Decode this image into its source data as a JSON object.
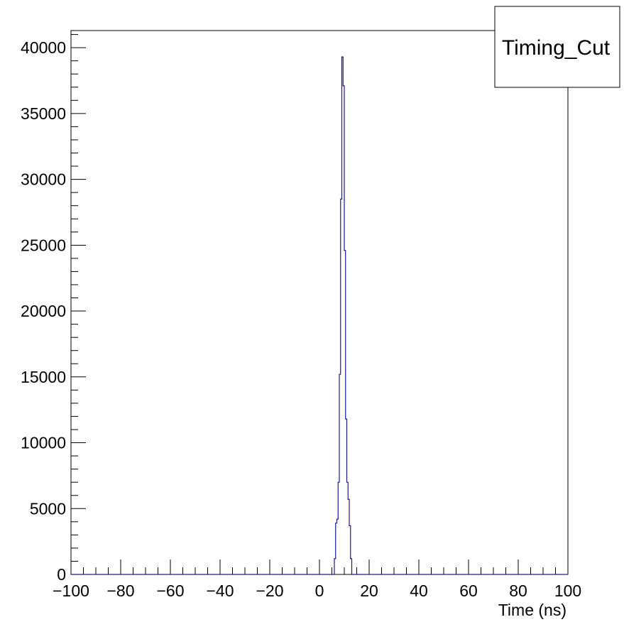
{
  "chart_data": {
    "type": "histogram",
    "title": "",
    "xlabel": "Time (ns)",
    "ylabel": "",
    "xlim": [
      -100,
      100
    ],
    "ylim": [
      0,
      41300
    ],
    "bin_width": 0.5,
    "x_ticks": [
      "−100",
      "−80",
      "−60",
      "−40",
      "−20",
      "0",
      "20",
      "40",
      "60",
      "80",
      "100"
    ],
    "y_ticks": [
      "0",
      "5000",
      "10000",
      "15000",
      "20000",
      "25000",
      "30000",
      "35000",
      "40000"
    ],
    "legend": {
      "text": "Timing_Cut",
      "placement": "top-right"
    },
    "line_color": "#1a1a8c",
    "series": [
      {
        "x": [
          6,
          6.5,
          7,
          7.5,
          8,
          8.5,
          9,
          9.5,
          10,
          10.5,
          11,
          11.5,
          12,
          12.5,
          13
        ],
        "values": [
          1200,
          3900,
          4200,
          7000,
          15200,
          28500,
          39300,
          37100,
          24600,
          11800,
          7000,
          5700,
          3700,
          1200,
          0
        ]
      }
    ]
  }
}
